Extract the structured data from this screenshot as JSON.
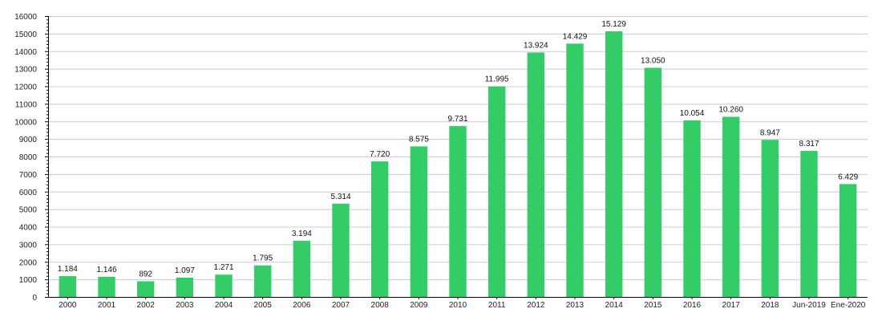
{
  "chart_data": {
    "type": "bar",
    "title": "",
    "xlabel": "",
    "ylabel": "",
    "categories": [
      "2000",
      "2001",
      "2002",
      "2003",
      "2004",
      "2005",
      "2006",
      "2007",
      "2008",
      "2009",
      "2010",
      "2011",
      "2012",
      "2013",
      "2014",
      "2015",
      "2016",
      "2017",
      "2018",
      "Jun-2019",
      "Ene-2020"
    ],
    "values": [
      1184,
      1146,
      892,
      1097,
      1271,
      1795,
      3194,
      5314,
      7720,
      8575,
      9731,
      11995,
      13924,
      14429,
      15129,
      13050,
      10054,
      10260,
      8947,
      8317,
      6429
    ],
    "data_labels": [
      "1.184",
      "1.146",
      "892",
      "1.097",
      "1.271",
      "1.795",
      "3.194",
      "5.314",
      "7.720",
      "8.575",
      "9.731",
      "11.995",
      "13.924",
      "14.429",
      "15.129",
      "13.050",
      "10.054",
      "10.260",
      "8.947",
      "8.317",
      "6.429"
    ],
    "ylim": [
      0,
      16000
    ],
    "yticks": [
      0,
      1000,
      2000,
      3000,
      4000,
      5000,
      6000,
      7000,
      8000,
      9000,
      10000,
      11000,
      12000,
      13000,
      14000,
      15000,
      16000
    ],
    "grid": true,
    "bar_color": "#33cc66",
    "grid_color": "#c8c8e6"
  }
}
